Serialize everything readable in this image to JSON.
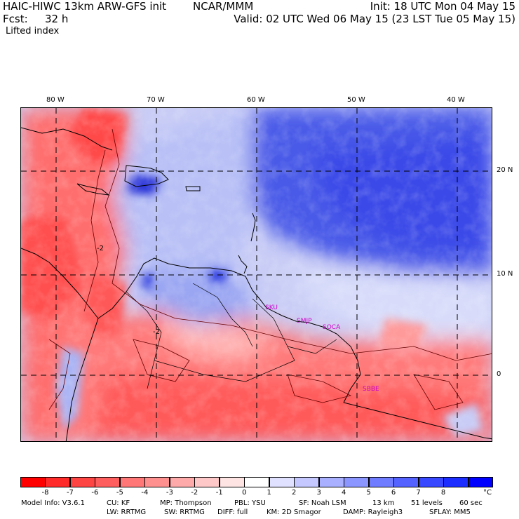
{
  "header": {
    "model": "HAIC-HIWC 13km ARW-GFS init",
    "org": "NCAR/MMM",
    "init": "Init: 18 UTC Mon 04 May 15",
    "fcst_label": "Fcst:",
    "fcst_value": "32 h",
    "valid": "Valid: 02 UTC Wed 06 May 15 (23 LST Tue 05 May 15)",
    "field": "Lifted index"
  },
  "map": {
    "lon_labels": [
      "80 W",
      "70 W",
      "60 W",
      "50 W",
      "40 W"
    ],
    "lat_labels": [
      "20 N",
      "10 N",
      "0"
    ],
    "contour_labels": [
      "-2",
      "-2"
    ],
    "stations": [
      "SKU",
      "SMJP",
      "SOCA",
      "SBBE"
    ],
    "colors": {
      "negative": "#ee4444",
      "positive": "#3344ee",
      "station": "#cc00cc"
    }
  },
  "colorbar": {
    "labels": [
      "-8",
      "-7",
      "-6",
      "-5",
      "-4",
      "-3",
      "-2",
      "-1",
      "0",
      "1",
      "2",
      "3",
      "4",
      "5",
      "6",
      "7",
      "8"
    ],
    "unit": "°C",
    "colors": [
      "#ff0000",
      "#ff2a2a",
      "#ff4444",
      "#ff5e5e",
      "#ff7777",
      "#ff9090",
      "#ffaaaa",
      "#ffc8c8",
      "#ffe4e4",
      "#ffffff",
      "#e0e0ff",
      "#c4c8ff",
      "#a8b0ff",
      "#8c96ff",
      "#707cff",
      "#5462ff",
      "#3848ff",
      "#1c2eff",
      "#0000ff"
    ]
  },
  "model_info": {
    "line1": [
      "Model Info: V3.6.1",
      "CU: KF",
      "MP: Thompson",
      "PBL: YSU",
      "SF: Noah LSM",
      "13 km",
      "51 levels",
      "60 sec"
    ],
    "line2": [
      "LW: RRTMG",
      "SW: RRTMG",
      "DIFF: full",
      "KM: 2D Smagor",
      "DAMP: Rayleigh3",
      "SFLAY: MM5"
    ]
  }
}
